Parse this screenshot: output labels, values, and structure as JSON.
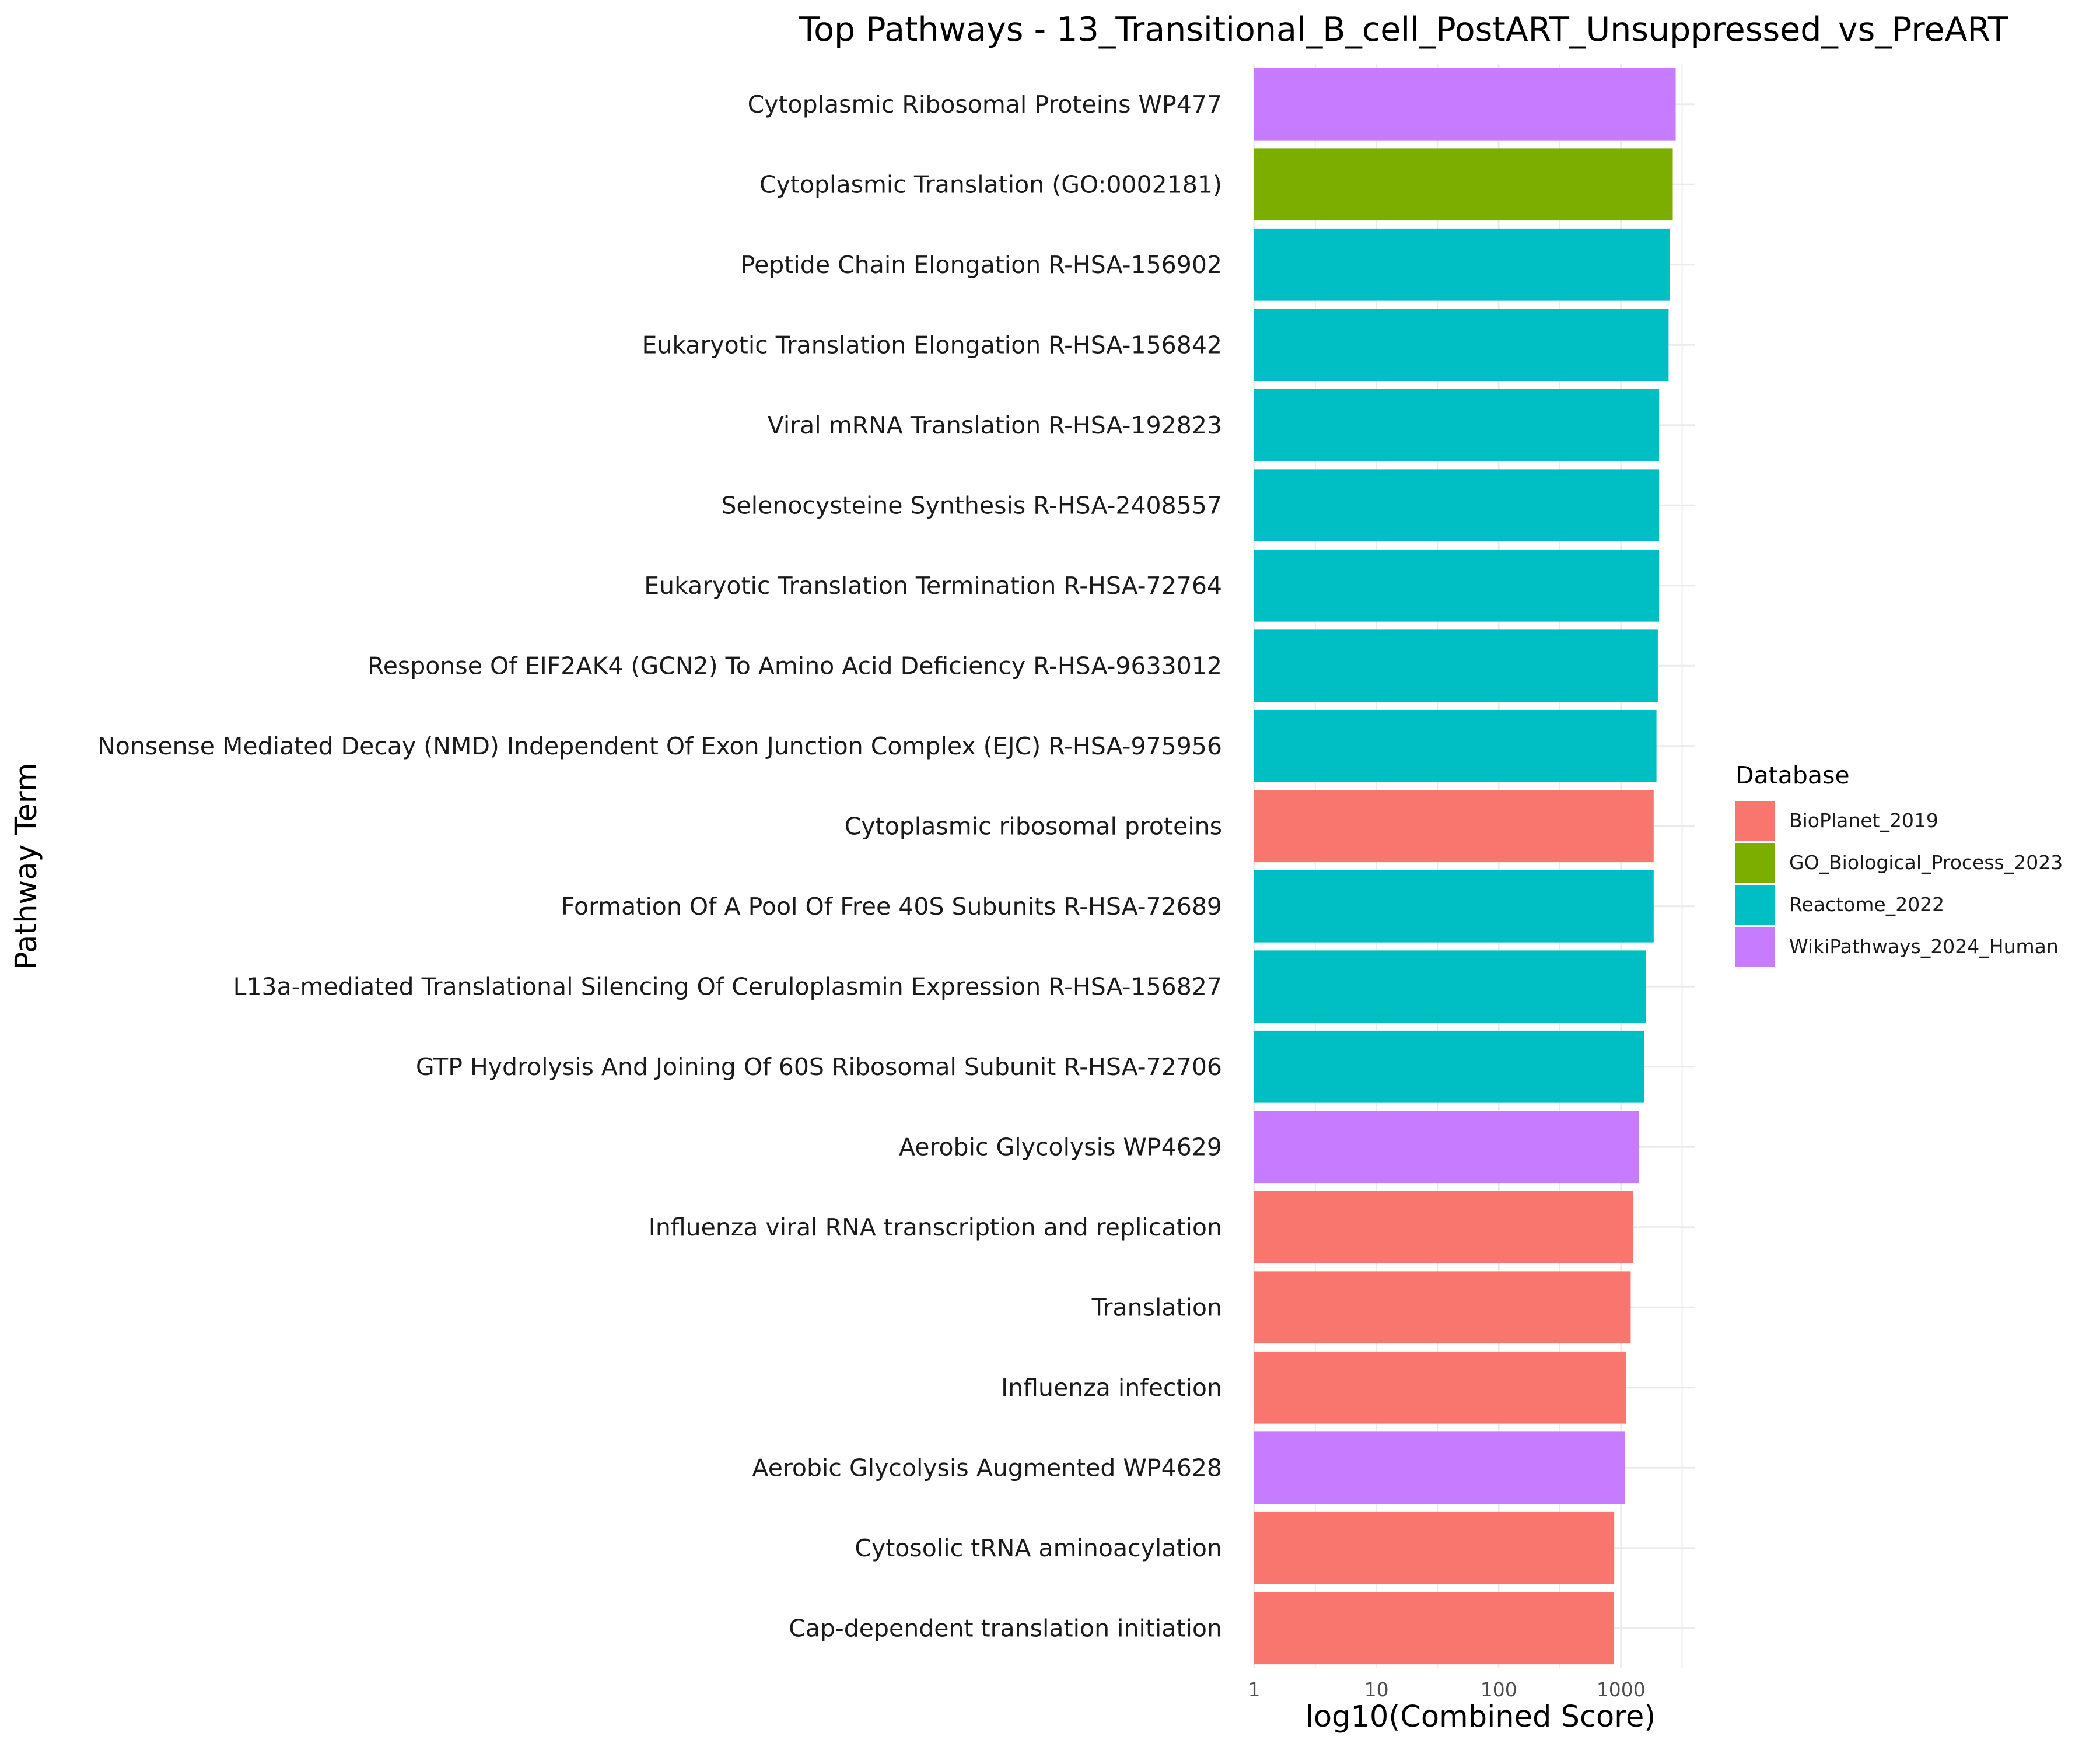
{
  "chart_data": {
    "type": "bar",
    "orientation": "horizontal",
    "title": "Top Pathways - 13_Transitional_B_cell_PostART_Unsuppressed_vs_PreART",
    "xlabel": "log10(Combined Score)",
    "ylabel": "Pathway Term",
    "x_scale": "log10",
    "xlim": [
      1,
      4000
    ],
    "x_ticks": [
      1,
      10,
      100,
      1000
    ],
    "x_tick_labels": [
      "1",
      "10",
      "100",
      "1000"
    ],
    "grid": true,
    "legend": {
      "title": "Database",
      "position": "right",
      "entries": [
        {
          "name": "BioPlanet_2019",
          "color": "#F8766D"
        },
        {
          "name": "GO_Biological_Process_2023",
          "color": "#7CAE00"
        },
        {
          "name": "Reactome_2022",
          "color": "#00BFC4"
        },
        {
          "name": "WikiPathways_2024_Human",
          "color": "#C77CFF"
        }
      ]
    },
    "categories": [
      "Cytoplasmic Ribosomal Proteins WP477",
      "Cytoplasmic Translation (GO:0002181)",
      "Peptide Chain Elongation R-HSA-156902",
      "Eukaryotic Translation Elongation R-HSA-156842",
      "Viral mRNA Translation R-HSA-192823",
      "Selenocysteine Synthesis R-HSA-2408557",
      "Eukaryotic Translation Termination R-HSA-72764",
      "Response Of EIF2AK4 (GCN2) To Amino Acid Deficiency R-HSA-9633012",
      "Nonsense Mediated Decay (NMD) Independent Of Exon Junction Complex (EJC) R-HSA-975956",
      "Cytoplasmic ribosomal proteins",
      "Formation Of A Pool Of Free 40S Subunits R-HSA-72689",
      "L13a-mediated Translational Silencing Of Ceruloplasmin Expression R-HSA-156827",
      "GTP Hydrolysis And Joining Of 60S Ribosomal Subunit R-HSA-72706",
      "Aerobic Glycolysis WP4629",
      "Influenza viral RNA transcription and replication",
      "Translation",
      "Influenza infection",
      "Aerobic Glycolysis Augmented WP4628",
      "Cytosolic tRNA aminoacylation",
      "Cap-dependent translation initiation"
    ],
    "values": [
      2800,
      2650,
      2500,
      2450,
      2050,
      2050,
      2050,
      2000,
      1950,
      1850,
      1850,
      1600,
      1550,
      1400,
      1250,
      1200,
      1100,
      1080,
      880,
      870
    ],
    "databases": [
      "WikiPathways_2024_Human",
      "GO_Biological_Process_2023",
      "Reactome_2022",
      "Reactome_2022",
      "Reactome_2022",
      "Reactome_2022",
      "Reactome_2022",
      "Reactome_2022",
      "Reactome_2022",
      "BioPlanet_2019",
      "Reactome_2022",
      "Reactome_2022",
      "Reactome_2022",
      "WikiPathways_2024_Human",
      "BioPlanet_2019",
      "BioPlanet_2019",
      "BioPlanet_2019",
      "WikiPathways_2024_Human",
      "BioPlanet_2019",
      "BioPlanet_2019"
    ]
  }
}
